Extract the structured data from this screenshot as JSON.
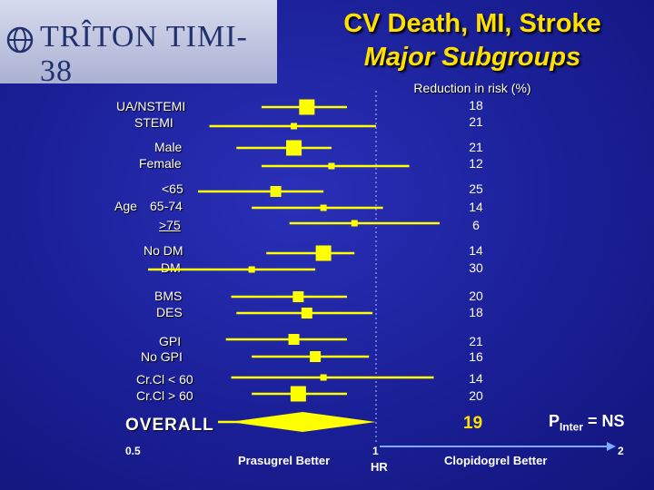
{
  "header": {
    "logo_text": "TRÎTON TIMI-38",
    "title_line1": "CV Death, MI, Stroke",
    "title_line2": "Major Subgroups",
    "column_header": "Reduction in risk (%)"
  },
  "labels": {
    "ua_nstemi": "UA/NSTEMI",
    "stemi": "STEMI",
    "male": "Male",
    "female": "Female",
    "age_lt65": "<65",
    "age": "Age",
    "age_65_74": "65-74",
    "age_ge75": ">75",
    "no_dm": "No DM",
    "dm": "DM",
    "bms": "BMS",
    "des": "DES",
    "gpi": "GPI",
    "no_gpi": "No GPI",
    "crcl_lt60": "Cr.Cl < 60",
    "crcl_ge60": "Cr.Cl > 60"
  },
  "overall": {
    "label": "OVERALL",
    "value": "19"
  },
  "p_interaction": {
    "prefix": "P",
    "sub": "Inter",
    "suffix": " = NS"
  },
  "axis": {
    "min_label": "0.5",
    "mid_label": "1",
    "max_label": "2",
    "hr_label": "HR"
  },
  "bottom": {
    "left_label": "Prasugrel Better",
    "right_label": "Clopidogrel Better"
  },
  "chart_data": {
    "type": "forest",
    "xlabel": "HR",
    "xscale": "log",
    "xlim": [
      0.5,
      2
    ],
    "reference_line": 1,
    "rows": [
      {
        "label": "UA/NSTEMI",
        "hr": 0.82,
        "ci": [
          0.72,
          0.92
        ],
        "reduction": "18",
        "marker": "large"
      },
      {
        "label": "STEMI",
        "hr": 0.79,
        "ci": [
          0.62,
          1.0
        ],
        "reduction": "21",
        "marker": "small"
      },
      {
        "label": "Male",
        "hr": 0.79,
        "ci": [
          0.67,
          0.88
        ],
        "reduction": "21",
        "marker": "large"
      },
      {
        "label": "Female",
        "hr": 0.88,
        "ci": [
          0.72,
          1.1
        ],
        "reduction": "12",
        "marker": "small"
      },
      {
        "label": "<65",
        "hr": 0.75,
        "ci": [
          0.6,
          0.86
        ],
        "reduction": "25",
        "marker": "medium"
      },
      {
        "label": "65-74",
        "hr": 0.86,
        "ci": [
          0.7,
          1.02
        ],
        "reduction": "14",
        "marker": "small"
      },
      {
        "label": ">75",
        "hr": 0.94,
        "ci": [
          0.78,
          1.2
        ],
        "reduction": "6",
        "marker": "small"
      },
      {
        "label": "No DM",
        "hr": 0.86,
        "ci": [
          0.73,
          0.94
        ],
        "reduction": "14",
        "marker": "large"
      },
      {
        "label": "DM",
        "hr": 0.7,
        "ci": [
          0.52,
          0.84
        ],
        "reduction": "30",
        "marker": "small"
      },
      {
        "label": "BMS",
        "hr": 0.8,
        "ci": [
          0.66,
          0.92
        ],
        "reduction": "20",
        "marker": "medium"
      },
      {
        "label": "DES",
        "hr": 0.82,
        "ci": [
          0.67,
          0.99
        ],
        "reduction": "18",
        "marker": "medium"
      },
      {
        "label": "GPI",
        "hr": 0.79,
        "ci": [
          0.65,
          0.92
        ],
        "reduction": "21",
        "marker": "medium"
      },
      {
        "label": "No GPI",
        "hr": 0.84,
        "ci": [
          0.7,
          0.98
        ],
        "reduction": "16",
        "marker": "medium"
      },
      {
        "label": "Cr.Cl < 60",
        "hr": 0.86,
        "ci": [
          0.66,
          1.18
        ],
        "reduction": "14",
        "marker": "small"
      },
      {
        "label": "Cr.Cl > 60",
        "hr": 0.8,
        "ci": [
          0.7,
          0.92
        ],
        "reduction": "20",
        "marker": "large"
      },
      {
        "label": "OVERALL",
        "hr": 0.81,
        "ci": [
          0.73,
          0.9
        ],
        "reduction": "19",
        "marker": "diamond"
      }
    ],
    "colors": {
      "background": "#1a1f96",
      "marker": "#ffff00",
      "line": "#ffff00",
      "text": "#ffffff",
      "title": "#ffe000",
      "axis_arrow": "#7faaff"
    }
  }
}
